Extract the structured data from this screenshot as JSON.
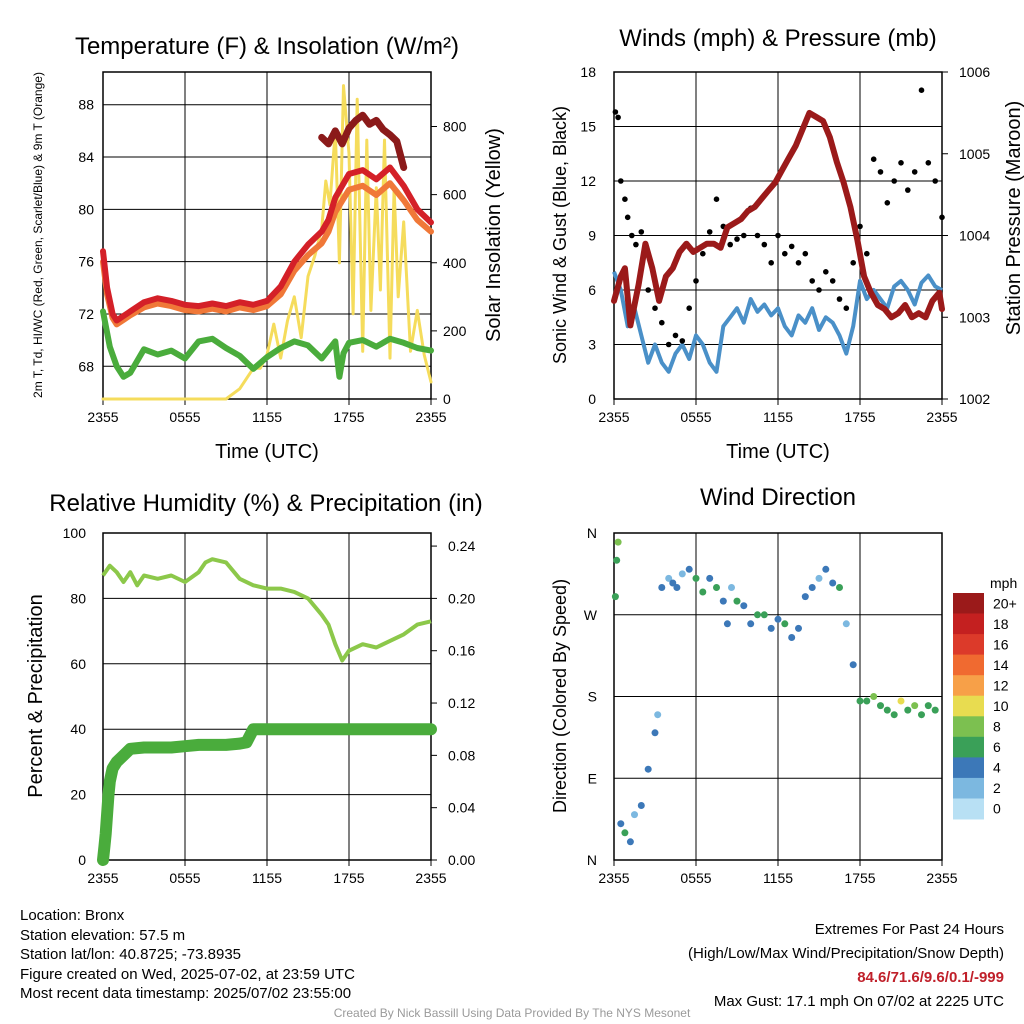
{
  "footer": {
    "location": "Location: Bronx",
    "elevation": "Station elevation: 57.5 m",
    "latlon": "Station lat/lon: 40.8725; -73.8935",
    "created": "Figure created on Wed, 2025-07-02, at 23:59 UTC",
    "recent": "Most recent data timestamp: 2025/07/02 23:55:00",
    "extremes_title": "Extremes For Past 24 Hours",
    "extremes_sub": "(High/Low/Max Wind/Precipitation/Snow Depth)",
    "extremes_values": "84.6/71.6/9.6/0.1/-999",
    "max_gust": "Max Gust: 17.1 mph On 07/02 at 2225 UTC",
    "credit": "Created By Nick Bassill Using Data Provided By The NYS Mesonet"
  },
  "colors": {
    "red": "#d42028",
    "scarlet": "#8b1a1a",
    "orange": "#f07838",
    "green": "#4aac3c",
    "yellow": "#f5dc5c",
    "blue": "#4a90c8",
    "black": "#000000",
    "maroon": "#9b1a1a",
    "rh_green": "#8cc84a"
  },
  "chart_data": [
    {
      "id": "temperature",
      "type": "line",
      "title": "Temperature (F) & Insolation (W/m²)",
      "xlabel": "Time (UTC)",
      "ylabel": "2m T, Td, HI/WC (Red, Green, Scarlet/Blue) & 9m T (Orange)",
      "ylabel_right": "Solar Insolation (Yellow)",
      "x_ticks": [
        "2355",
        "0555",
        "1155",
        "1755",
        "2355"
      ],
      "y_ticks": [
        "68",
        "72",
        "76",
        "80",
        "84",
        "88"
      ],
      "y_ticks_right": [
        "0",
        "200",
        "400",
        "600",
        "800"
      ],
      "ylim": [
        65.5,
        90.5
      ],
      "ylim_right": [
        0,
        960
      ],
      "xlim": [
        0,
        24
      ],
      "series": [
        {
          "name": "2m T",
          "color": "#d42028",
          "axis": "left",
          "x": [
            0,
            0.3,
            0.7,
            1,
            2,
            3,
            4,
            5,
            6,
            7,
            8,
            9,
            10,
            11,
            12,
            13,
            14,
            15,
            16,
            16.5,
            17,
            18,
            19,
            20,
            21,
            22,
            23,
            24
          ],
          "y": [
            76.8,
            74,
            72,
            71.5,
            72.2,
            72.9,
            73.2,
            73,
            72.7,
            72.6,
            72.8,
            72.6,
            72.9,
            72.7,
            73,
            74.1,
            76,
            77.3,
            78.3,
            79.2,
            80.9,
            82.7,
            83,
            82.3,
            83.2,
            81.8,
            80,
            79
          ]
        },
        {
          "name": "9m T",
          "color": "#f07838",
          "axis": "left",
          "x": [
            0,
            0.3,
            0.7,
            1,
            2,
            3,
            4,
            5,
            6,
            7,
            8,
            9,
            10,
            11,
            12,
            13,
            14,
            15,
            16,
            16.5,
            17,
            18,
            19,
            20,
            21,
            22,
            23,
            24
          ],
          "y": [
            76,
            73.5,
            71.7,
            71.2,
            71.9,
            72.5,
            72.8,
            72.6,
            72.3,
            72.2,
            72.4,
            72.2,
            72.5,
            72.3,
            72.6,
            73.5,
            75.3,
            76.5,
            77.4,
            78.3,
            79.8,
            81.5,
            81.8,
            81.1,
            82,
            80.7,
            79.2,
            78.3
          ]
        },
        {
          "name": "HI",
          "color": "#8b1a1a",
          "axis": "left",
          "x": [
            16,
            16.5,
            17,
            17.5,
            18,
            18.5,
            19,
            19.5,
            20,
            20.5,
            21,
            21.5,
            22
          ],
          "y": [
            85.5,
            85,
            86,
            85,
            86.2,
            86.8,
            87.2,
            86.5,
            86.8,
            86.1,
            85.7,
            85.2,
            83.2
          ]
        },
        {
          "name": "2m Td",
          "color": "#4aac3c",
          "axis": "left",
          "x": [
            0,
            0.5,
            1,
            1.5,
            2,
            3,
            4,
            5,
            6,
            7,
            8,
            9,
            10,
            11,
            12,
            13,
            14,
            15,
            16,
            17,
            17.3,
            17.6,
            18,
            19,
            20,
            21,
            22,
            23,
            24
          ],
          "y": [
            72.2,
            69.5,
            68,
            67.2,
            67.5,
            69.3,
            68.9,
            69.2,
            68.6,
            69.9,
            70.1,
            69.4,
            68.8,
            67.8,
            68.7,
            69.4,
            69.9,
            69.6,
            68.6,
            69.9,
            67.2,
            69,
            69.8,
            70,
            69.5,
            70.1,
            69.8,
            69.4,
            69.2
          ]
        },
        {
          "name": "Solar",
          "color": "#f5dc5c",
          "axis": "right",
          "x": [
            0,
            6,
            9,
            10,
            11,
            11.5,
            12,
            12.5,
            13,
            13.5,
            14,
            14.5,
            15,
            15.5,
            16,
            16.3,
            16.6,
            17,
            17.3,
            17.6,
            18,
            18.3,
            18.6,
            19,
            19.3,
            19.6,
            20,
            20.3,
            20.6,
            21,
            21.3,
            21.6,
            22,
            22.5,
            23,
            23.5,
            24
          ],
          "y": [
            0,
            0,
            0,
            30,
            90,
            90,
            130,
            220,
            120,
            230,
            300,
            180,
            360,
            420,
            500,
            640,
            570,
            790,
            400,
            920,
            720,
            250,
            880,
            140,
            760,
            260,
            620,
            320,
            760,
            120,
            620,
            300,
            520,
            140,
            260,
            130,
            50
          ]
        }
      ]
    },
    {
      "id": "winds",
      "type": "line",
      "title": "Winds (mph) & Pressure (mb)",
      "xlabel": "Time (UTC)",
      "ylabel": "Sonic Wind & Gust (Blue, Black)",
      "ylabel_right": "Station Pressure (Maroon)",
      "x_ticks": [
        "2355",
        "0555",
        "1155",
        "1755",
        "2355"
      ],
      "y_ticks": [
        "0",
        "3",
        "6",
        "9",
        "12",
        "15",
        "18"
      ],
      "y_ticks_right": [
        "1002",
        "1003",
        "1004",
        "1005",
        "1006"
      ],
      "ylim": [
        0,
        18
      ],
      "ylim_right": [
        1002,
        1006
      ],
      "xlim": [
        0,
        24
      ],
      "series": [
        {
          "name": "Sonic Wind",
          "color": "#4a90c8",
          "axis": "left",
          "x": [
            0,
            0.5,
            1,
            1.5,
            2,
            2.5,
            3,
            3.5,
            4,
            4.5,
            5,
            5.5,
            6,
            6.5,
            7,
            7.5,
            8,
            8.5,
            9,
            9.5,
            10,
            10.5,
            11,
            11.5,
            12,
            12.5,
            13,
            13.5,
            14,
            14.5,
            15,
            15.5,
            16,
            16.5,
            17,
            17.5,
            18,
            18.5,
            19,
            19.5,
            20,
            20.5,
            21,
            21.5,
            22,
            22.5,
            23,
            23.5,
            24
          ],
          "y": [
            7,
            6,
            4,
            5,
            3.5,
            2,
            3,
            2,
            1.5,
            2.5,
            3,
            2.2,
            3.5,
            3,
            2,
            1.5,
            4,
            4.5,
            5,
            4.2,
            5.5,
            4.8,
            5.2,
            4.6,
            5,
            4,
            3.5,
            4.6,
            4.2,
            5,
            3.8,
            4.5,
            4.2,
            3.5,
            2.5,
            4,
            6.5,
            5.5,
            6,
            5.5,
            5,
            6.2,
            6.5,
            6,
            5.2,
            6.4,
            6.8,
            6.2,
            6
          ]
        },
        {
          "name": "Gust",
          "color": "#000000",
          "axis": "left",
          "type": "scatter",
          "x": [
            0.1,
            0.3,
            0.5,
            0.8,
            1,
            1.3,
            1.6,
            2,
            2.5,
            3,
            3.5,
            4,
            4.5,
            5,
            5.5,
            6,
            6.5,
            7,
            7.5,
            8,
            8.5,
            9,
            9.5,
            10,
            10.5,
            11,
            11.5,
            12,
            12.5,
            13,
            13.5,
            14,
            14.5,
            15,
            15.5,
            16,
            16.5,
            17,
            17.5,
            18,
            18.5,
            19,
            19.5,
            20,
            20.5,
            21,
            21.5,
            22,
            22.5,
            23,
            23.5,
            24
          ],
          "y": [
            15.8,
            15.5,
            12,
            11,
            10,
            9,
            8.5,
            9.2,
            6,
            5,
            4.2,
            3,
            3.5,
            3.2,
            5,
            6.5,
            8,
            9.2,
            11,
            9.5,
            8.5,
            8.8,
            9,
            10.5,
            9,
            8.5,
            7.5,
            9,
            8,
            8.4,
            7.5,
            8,
            6.5,
            6,
            7,
            6.5,
            5.5,
            5,
            7.5,
            9.5,
            8,
            13.2,
            12.5,
            10.8,
            12,
            13,
            11.5,
            12.5,
            17,
            13,
            12,
            10
          ]
        },
        {
          "name": "Pressure",
          "color": "#9b1a1a",
          "axis": "right",
          "x": [
            0,
            0.5,
            0.8,
            1.2,
            1.8,
            2.3,
            2.8,
            3.3,
            3.8,
            4.3,
            4.8,
            5.3,
            5.8,
            6.3,
            6.8,
            7.3,
            7.8,
            8.3,
            8.8,
            9.3,
            9.8,
            10.3,
            10.8,
            11.3,
            11.8,
            12.3,
            12.8,
            13.3,
            13.8,
            14.3,
            14.8,
            15.3,
            15.8,
            16.3,
            16.8,
            17.3,
            17.8,
            18.3,
            18.8,
            19.3,
            19.8,
            20.3,
            20.8,
            21.3,
            21.8,
            22.3,
            22.8,
            23.3,
            23.8,
            24
          ],
          "y": [
            1003.2,
            1003.5,
            1003.6,
            1002.9,
            1003.4,
            1003.9,
            1003.6,
            1003.2,
            1003.5,
            1003.6,
            1003.8,
            1003.9,
            1003.8,
            1003.85,
            1003.9,
            1003.9,
            1003.85,
            1004.1,
            1004.15,
            1004.2,
            1004.3,
            1004.35,
            1004.45,
            1004.55,
            1004.65,
            1004.8,
            1004.95,
            1005.1,
            1005.3,
            1005.5,
            1005.45,
            1005.4,
            1005.2,
            1004.9,
            1004.65,
            1004.35,
            1003.95,
            1003.5,
            1003.3,
            1003.15,
            1003.1,
            1003.0,
            1003.05,
            1003.15,
            1003.0,
            1003.05,
            1003.0,
            1003.2,
            1003.3,
            1003.1
          ]
        }
      ]
    },
    {
      "id": "humidity",
      "type": "line",
      "title": "Relative Humidity (%) & Precipitation (in)",
      "ylabel": "Percent & Precipitation",
      "x_ticks": [
        "2355",
        "0555",
        "1155",
        "1755",
        "2355"
      ],
      "y_ticks": [
        "0",
        "20",
        "40",
        "60",
        "80",
        "100"
      ],
      "y_ticks_right": [
        "0.00",
        "0.04",
        "0.08",
        "0.12",
        "0.16",
        "0.20",
        "0.24"
      ],
      "ylim": [
        0,
        100
      ],
      "ylim_right": [
        0,
        0.25
      ],
      "xlim": [
        0,
        24
      ],
      "series": [
        {
          "name": "Relative Humidity",
          "color": "#8cc84a",
          "axis": "left",
          "x": [
            0,
            0.5,
            1,
            1.5,
            2,
            2.5,
            3,
            4,
            5,
            6,
            7,
            7.5,
            8,
            9,
            10,
            11,
            12,
            13,
            14,
            15,
            16,
            16.5,
            17,
            17.5,
            18,
            19,
            20,
            21,
            22,
            23,
            24
          ],
          "y": [
            87,
            90,
            88,
            85,
            88,
            84,
            87,
            86,
            87,
            85,
            88,
            91,
            92,
            91,
            86,
            84,
            83,
            83,
            82,
            80,
            75,
            72,
            66,
            61,
            64,
            66,
            65,
            67,
            69,
            72,
            73
          ]
        },
        {
          "name": "Precipitation",
          "color": "#4aac3c",
          "axis": "right",
          "x": [
            0,
            0.1,
            0.2,
            0.3,
            0.4,
            0.5,
            0.7,
            1,
            1.5,
            2,
            3,
            4,
            5,
            6,
            7,
            8,
            9,
            10,
            10.5,
            11,
            12,
            13,
            14,
            15,
            16,
            17,
            18,
            19,
            20,
            21,
            22,
            23,
            24
          ],
          "y": [
            0,
            0.01,
            0.02,
            0.035,
            0.05,
            0.06,
            0.07,
            0.075,
            0.08,
            0.085,
            0.086,
            0.086,
            0.086,
            0.087,
            0.088,
            0.088,
            0.088,
            0.089,
            0.09,
            0.1,
            0.1,
            0.1,
            0.1,
            0.1,
            0.1,
            0.1,
            0.1,
            0.1,
            0.1,
            0.1,
            0.1,
            0.1,
            0.1
          ]
        }
      ]
    },
    {
      "id": "direction",
      "type": "scatter",
      "title": "Wind Direction",
      "ylabel": "Direction (Colored By Speed)",
      "x_ticks": [
        "2355",
        "0555",
        "1155",
        "1755",
        "2355"
      ],
      "y_ticks": [
        "N",
        "E",
        "S",
        "W",
        "N"
      ],
      "ylim": [
        0,
        360
      ],
      "xlim": [
        0,
        24
      ],
      "legend_title": "mph",
      "legend_labels": [
        "20+",
        "18",
        "16",
        "14",
        "12",
        "10",
        "8",
        "6",
        "4",
        "2",
        "0"
      ],
      "legend_colors": [
        "#9b1a1a",
        "#c42020",
        "#dc3a2a",
        "#f06a30",
        "#f7a048",
        "#e8dc50",
        "#7cc050",
        "#3aa058",
        "#3c78b8",
        "#7cb8e0",
        "#b8e0f4"
      ],
      "points": {
        "x": [
          0.1,
          0.2,
          0.3,
          0.5,
          0.8,
          1.2,
          1.5,
          2,
          2.5,
          3,
          3.2,
          3.5,
          4,
          4.3,
          4.6,
          5,
          5.5,
          6,
          6.5,
          7,
          7.5,
          8,
          8.3,
          8.6,
          9,
          9.5,
          10,
          10.5,
          11,
          11.5,
          12,
          12.5,
          13,
          13.5,
          14,
          14.5,
          15,
          15.5,
          16,
          16.5,
          17,
          17.5,
          18,
          18.5,
          19,
          19.5,
          20,
          20.5,
          21,
          21.5,
          22,
          22.5,
          23,
          23.5
        ],
        "y": [
          290,
          330,
          350,
          40,
          30,
          20,
          50,
          60,
          100,
          140,
          160,
          300,
          310,
          305,
          300,
          315,
          320,
          310,
          295,
          310,
          300,
          285,
          260,
          300,
          285,
          280,
          260,
          270,
          270,
          255,
          265,
          260,
          245,
          255,
          290,
          300,
          310,
          320,
          305,
          300,
          260,
          215,
          175,
          175,
          180,
          170,
          165,
          160,
          175,
          165,
          170,
          160,
          170,
          165
        ],
        "speed": [
          6,
          5,
          7,
          4,
          6,
          3,
          2,
          3,
          4,
          4,
          2,
          3,
          2,
          4,
          3,
          1,
          4,
          5,
          6,
          4,
          5,
          3,
          4,
          2,
          6,
          4,
          3,
          5,
          6,
          4,
          3,
          5,
          4,
          3,
          4,
          3,
          2,
          4,
          3,
          5,
          2,
          4,
          6,
          5,
          7,
          6,
          5,
          6,
          9,
          6,
          7,
          5,
          6,
          5
        ]
      }
    }
  ]
}
